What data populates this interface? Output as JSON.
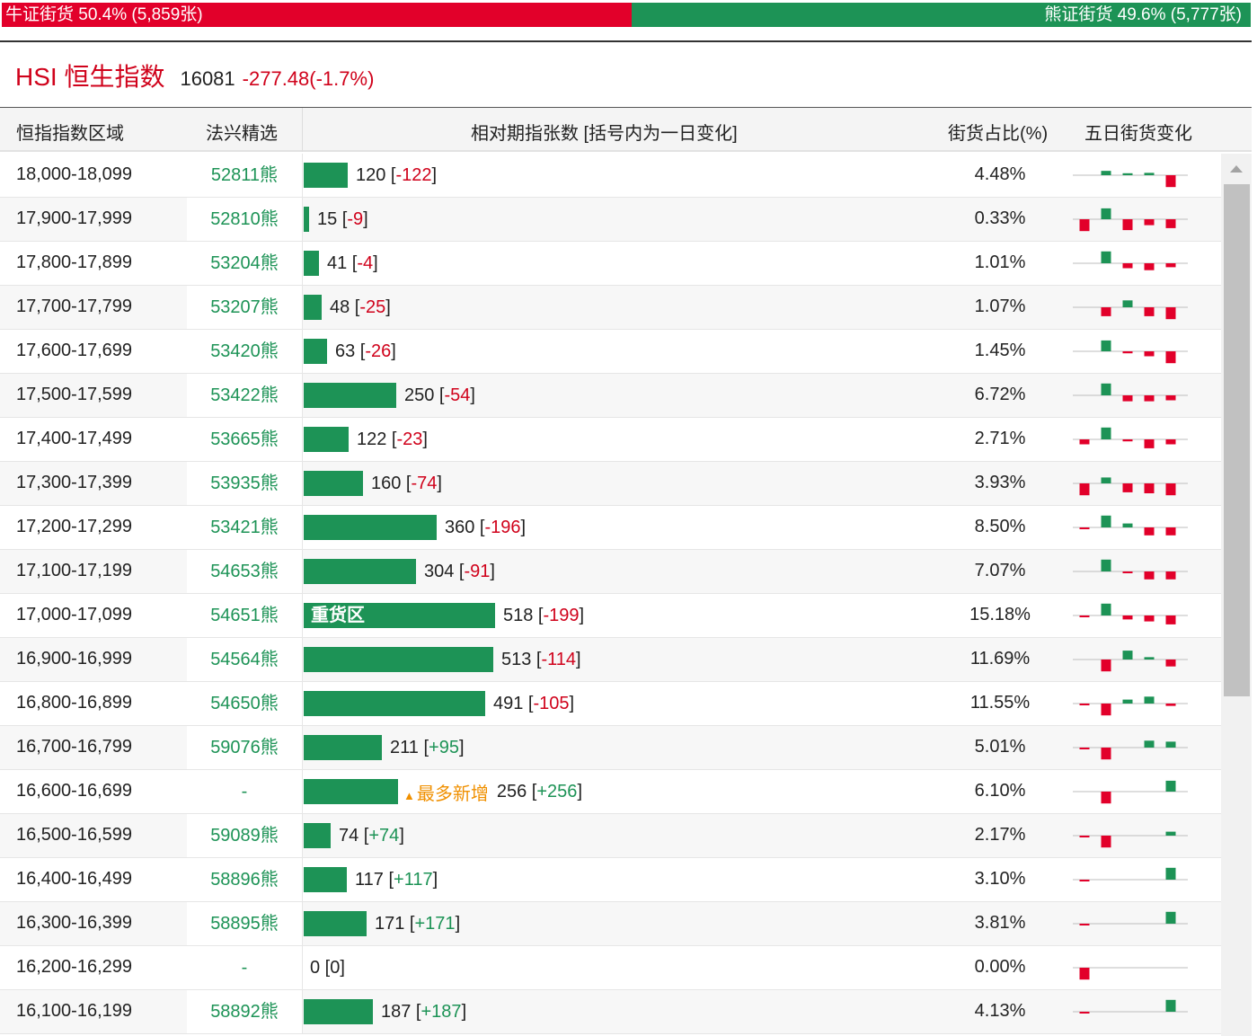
{
  "ratio": {
    "bull_label": "牛证街货 50.4% (5,859张)",
    "bear_label": "熊证街货 49.6% (5,777张)",
    "bull_share": 0.504,
    "bull_color": "#e2002a",
    "bear_color": "#1d9356"
  },
  "index": {
    "name": "HSI 恒生指数",
    "price": "16081",
    "change": "-277.48(-1.7%)"
  },
  "table": {
    "headers": {
      "range": "恒指指数区域",
      "pick": "法兴精选",
      "count": "相对期指张数 [括号内为一日变化]",
      "share": "街货占比(%)",
      "five_day": "五日街货变化"
    },
    "bar_max_count": 518,
    "rows": [
      {
        "range": "18,000-18,099",
        "pick": "52811熊",
        "count": 120,
        "count_text": "120",
        "delta": "-122",
        "share": "4.48%",
        "spark": [
          0,
          0.22,
          0.1,
          0.12,
          -0.6
        ]
      },
      {
        "range": "17,900-17,999",
        "pick": "52810熊",
        "count": 15,
        "count_text": "15",
        "delta": "-9",
        "share": "0.33%",
        "spark": [
          -0.6,
          0.55,
          -0.55,
          -0.3,
          -0.45
        ]
      },
      {
        "range": "17,800-17,899",
        "pick": "53204熊",
        "count": 41,
        "count_text": "41",
        "delta": "-4",
        "share": "1.01%",
        "spark": [
          0,
          0.6,
          -0.25,
          -0.35,
          -0.2
        ]
      },
      {
        "range": "17,700-17,799",
        "pick": "53207熊",
        "count": 48,
        "count_text": "48",
        "delta": "-25",
        "share": "1.07%",
        "spark": [
          0,
          -0.45,
          0.35,
          -0.45,
          -0.6
        ]
      },
      {
        "range": "17,600-17,699",
        "pick": "53420熊",
        "count": 63,
        "count_text": "63",
        "delta": "-26",
        "share": "1.45%",
        "spark": [
          0,
          0.55,
          -0.1,
          -0.25,
          -0.6
        ]
      },
      {
        "range": "17,500-17,599",
        "pick": "53422熊",
        "count": 250,
        "count_text": "250",
        "delta": "-54",
        "share": "6.72%",
        "spark": [
          0,
          0.6,
          -0.3,
          -0.3,
          -0.25
        ]
      },
      {
        "range": "17,400-17,499",
        "pick": "53665熊",
        "count": 122,
        "count_text": "122",
        "delta": "-23",
        "share": "2.71%",
        "spark": [
          -0.25,
          0.6,
          -0.1,
          -0.45,
          -0.25
        ]
      },
      {
        "range": "17,300-17,399",
        "pick": "53935熊",
        "count": 160,
        "count_text": "160",
        "delta": "-74",
        "share": "3.93%",
        "spark": [
          -0.6,
          0.3,
          -0.45,
          -0.5,
          -0.6
        ]
      },
      {
        "range": "17,200-17,299",
        "pick": "53421熊",
        "count": 360,
        "count_text": "360",
        "delta": "-196",
        "share": "8.50%",
        "spark": [
          -0.08,
          0.6,
          0.2,
          -0.4,
          -0.4
        ]
      },
      {
        "range": "17,100-17,199",
        "pick": "54653熊",
        "count": 304,
        "count_text": "304",
        "delta": "-91",
        "share": "7.07%",
        "spark": [
          0,
          0.6,
          -0.08,
          -0.4,
          -0.4
        ]
      },
      {
        "range": "17,000-17,099",
        "pick": "54651熊",
        "count": 518,
        "count_text": "518",
        "delta": "-199",
        "share": "15.18%",
        "label": "重货区",
        "spark": [
          -0.08,
          0.6,
          -0.2,
          -0.3,
          -0.45
        ]
      },
      {
        "range": "16,900-16,999",
        "pick": "54564熊",
        "count": 513,
        "count_text": "513",
        "delta": "-114",
        "share": "11.69%",
        "spark": [
          0,
          -0.6,
          0.45,
          0.12,
          -0.35
        ]
      },
      {
        "range": "16,800-16,899",
        "pick": "54650熊",
        "count": 491,
        "count_text": "491",
        "delta": "-105",
        "share": "11.55%",
        "spark": [
          -0.08,
          -0.6,
          0.2,
          0.35,
          -0.12
        ]
      },
      {
        "range": "16,700-16,799",
        "pick": "59076熊",
        "count": 211,
        "count_text": "211",
        "delta": "+95",
        "share": "5.01%",
        "spark": [
          -0.08,
          -0.6,
          0,
          0.35,
          0.3
        ]
      },
      {
        "range": "16,600-16,699",
        "pick": "-",
        "count": 256,
        "count_text": "256",
        "delta": "+256",
        "share": "6.10%",
        "hot": "最多新增",
        "spark": [
          0,
          -0.6,
          0,
          0,
          0.55
        ]
      },
      {
        "range": "16,500-16,599",
        "pick": "59089熊",
        "count": 74,
        "count_text": "74",
        "delta": "+74",
        "share": "2.17%",
        "spark": [
          -0.08,
          -0.6,
          0,
          0,
          0.2
        ]
      },
      {
        "range": "16,400-16,499",
        "pick": "58896熊",
        "count": 117,
        "count_text": "117",
        "delta": "+117",
        "share": "3.10%",
        "spark": [
          -0.08,
          0,
          0,
          0,
          0.6
        ]
      },
      {
        "range": "16,300-16,399",
        "pick": "58895熊",
        "count": 171,
        "count_text": "171",
        "delta": "+171",
        "share": "3.81%",
        "spark": [
          -0.08,
          0,
          0,
          0,
          0.6
        ]
      },
      {
        "range": "16,200-16,299",
        "pick": "-",
        "count": 0,
        "count_text": "0",
        "delta": "0",
        "share": "0.00%",
        "spark": [
          -0.6,
          0,
          0,
          0,
          0
        ]
      },
      {
        "range": "16,100-16,199",
        "pick": "58892熊",
        "count": 187,
        "count_text": "187",
        "delta": "+187",
        "share": "4.13%",
        "spark": [
          -0.08,
          0,
          0,
          0,
          0.6
        ]
      }
    ]
  }
}
